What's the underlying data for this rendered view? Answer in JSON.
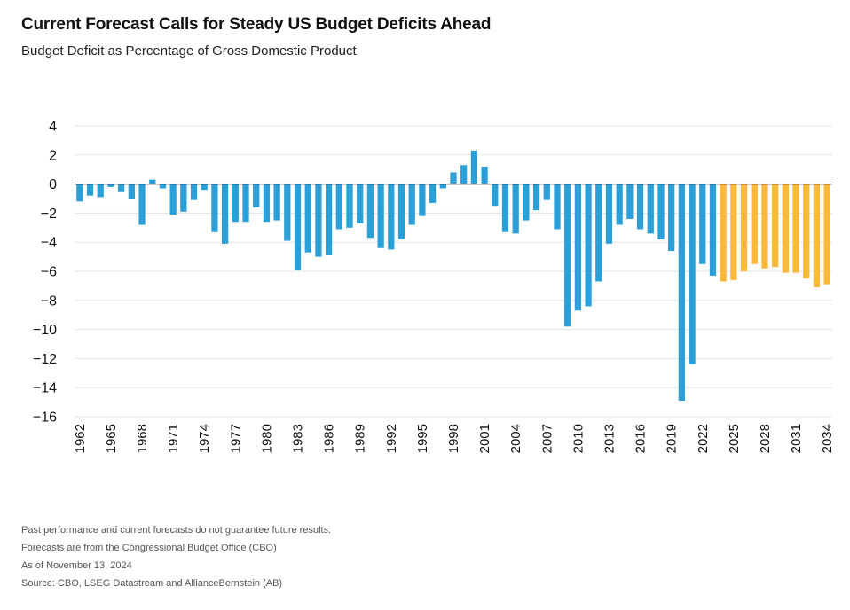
{
  "header": {
    "title": "Current Forecast Calls for Steady US Budget Deficits Ahead",
    "subtitle": "Budget Deficit as Percentage of Gross Domestic Product"
  },
  "footnotes": [
    "Past performance and current forecasts do not guarantee future results.",
    "Forecasts are from the Congressional Budget Office (CBO)",
    "As of November 13, 2024",
    "Source: CBO, LSEG Datastream and AllianceBernstein (AB)"
  ],
  "colors": {
    "historical": "#2a9fd8",
    "forecast": "#f9b93b",
    "grid": "#e3e3e3",
    "zero_line": "#222222"
  },
  "chart_data": {
    "type": "bar",
    "title": "Current Forecast Calls for Steady US Budget Deficits Ahead",
    "subtitle": "Budget Deficit as Percentage of Gross Domestic Product",
    "xlabel": "",
    "ylabel": "",
    "ylim": [
      -16,
      4
    ],
    "yticks": [
      4,
      2,
      0,
      -2,
      -4,
      -6,
      -8,
      -10,
      -12,
      -14,
      -16
    ],
    "ytick_labels": [
      "4",
      "2",
      "0",
      "−2",
      "−4",
      "−6",
      "−8",
      "−10",
      "−12",
      "−14",
      "−16"
    ],
    "xtick_labels": [
      "1962",
      "1965",
      "1968",
      "1971",
      "1974",
      "1977",
      "1980",
      "1983",
      "1986",
      "1989",
      "1992",
      "1995",
      "1998",
      "2001",
      "2004",
      "2007",
      "2010",
      "2013",
      "2016",
      "2019",
      "2022",
      "2025",
      "2028",
      "2031",
      "2034"
    ],
    "grid": true,
    "legend": "none",
    "categories": [
      1962,
      1963,
      1964,
      1965,
      1966,
      1967,
      1968,
      1969,
      1970,
      1971,
      1972,
      1973,
      1974,
      1975,
      1976,
      1977,
      1978,
      1979,
      1980,
      1981,
      1982,
      1983,
      1984,
      1985,
      1986,
      1987,
      1988,
      1989,
      1990,
      1991,
      1992,
      1993,
      1994,
      1995,
      1996,
      1997,
      1998,
      1999,
      2000,
      2001,
      2002,
      2003,
      2004,
      2005,
      2006,
      2007,
      2008,
      2009,
      2010,
      2011,
      2012,
      2013,
      2014,
      2015,
      2016,
      2017,
      2018,
      2019,
      2020,
      2021,
      2022,
      2023,
      2024,
      2025,
      2026,
      2027,
      2028,
      2029,
      2030,
      2031,
      2032,
      2033,
      2034
    ],
    "values": [
      -1.2,
      -0.8,
      -0.9,
      -0.2,
      -0.5,
      -1.0,
      -2.8,
      0.3,
      -0.3,
      -2.1,
      -1.9,
      -1.1,
      -0.4,
      -3.3,
      -4.1,
      -2.6,
      -2.6,
      -1.6,
      -2.6,
      -2.5,
      -3.9,
      -5.9,
      -4.7,
      -5.0,
      -4.9,
      -3.1,
      -3.0,
      -2.7,
      -3.7,
      -4.4,
      -4.5,
      -3.8,
      -2.8,
      -2.2,
      -1.3,
      -0.3,
      0.8,
      1.3,
      2.3,
      1.2,
      -1.5,
      -3.3,
      -3.4,
      -2.5,
      -1.8,
      -1.1,
      -3.1,
      -9.8,
      -8.7,
      -8.4,
      -6.7,
      -4.1,
      -2.8,
      -2.4,
      -3.1,
      -3.4,
      -3.8,
      -4.6,
      -14.9,
      -12.4,
      -5.5,
      -6.3,
      -6.7,
      -6.6,
      -6.0,
      -5.5,
      -5.8,
      -5.7,
      -6.1,
      -6.1,
      -6.5,
      -7.1,
      -6.9
    ],
    "series": [
      {
        "type": "historical",
        "from": 1962,
        "to": 2023
      },
      {
        "type": "forecast",
        "from": 2024,
        "to": 2034
      }
    ]
  }
}
